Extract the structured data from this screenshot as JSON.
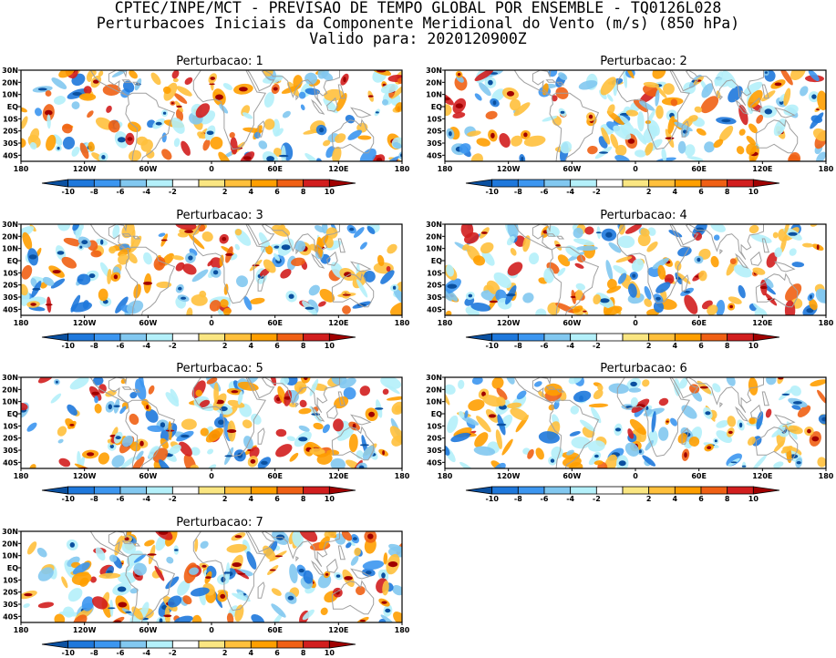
{
  "header": {
    "line1": "CPTEC/INPE/MCT - PREVISAO DE TEMPO GLOBAL POR ENSEMBLE - TQ0126L028",
    "line2": "Perturbacoes Iniciais da Componente Meridional do Vento (m/s) (850 hPa)",
    "line3": "Valido para: 2020120900Z"
  },
  "panels": [
    {
      "title": "Perturbacao: 1"
    },
    {
      "title": "Perturbacao: 2"
    },
    {
      "title": "Perturbacao: 3"
    },
    {
      "title": "Perturbacao: 4"
    },
    {
      "title": "Perturbacao: 5"
    },
    {
      "title": "Perturbacao: 6"
    },
    {
      "title": "Perturbacao: 7"
    }
  ],
  "lat_labels": [
    "30N",
    "20N",
    "10N",
    "EQ",
    "10S",
    "20S",
    "30S",
    "40S"
  ],
  "lon_labels": [
    "180",
    "120W",
    "60W",
    "0",
    "60E",
    "120E",
    "180"
  ],
  "colorbar": {
    "tick_labels": [
      "-10",
      "-8",
      "-6",
      "-4",
      "-2",
      "2",
      "4",
      "6",
      "8",
      "10"
    ],
    "colors": [
      "#0a50a0",
      "#1e78dc",
      "#3c96f0",
      "#82c8f0",
      "#b4f0fa",
      "#ffffff",
      "#fae682",
      "#ffc03c",
      "#ff9f00",
      "#f06014",
      "#d21e1e",
      "#a00000"
    ]
  },
  "map_colors": {
    "land_outline": "#a0a0a0",
    "frame": "#000000"
  }
}
